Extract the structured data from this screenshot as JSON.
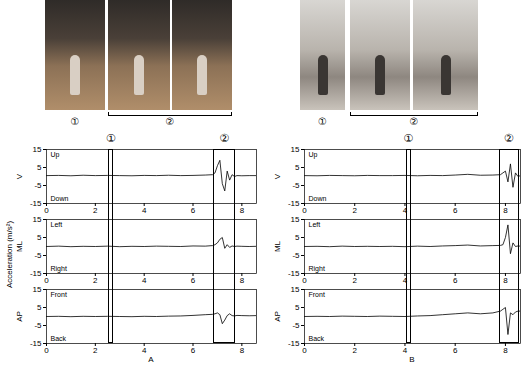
{
  "figure": {
    "ylabel": "Acceleration (m/s²)"
  },
  "photo_panels": [
    {
      "frame_groups": [
        {
          "label": "①",
          "frames": 1
        },
        {
          "label": "②",
          "frames": 2
        }
      ]
    },
    {
      "frame_groups": [
        {
          "label": "①",
          "frames": 1
        },
        {
          "label": "②",
          "frames": 2
        }
      ]
    }
  ],
  "panels": [
    {
      "label": "A",
      "windows": [
        {
          "label": "①",
          "x": [
            2.55,
            2.75
          ]
        },
        {
          "label": "②",
          "x": [
            6.85,
            7.75
          ]
        }
      ]
    },
    {
      "label": "B",
      "windows": [
        {
          "label": "①",
          "x": [
            4.05,
            4.25
          ]
        },
        {
          "label": "②",
          "x": [
            7.75,
            8.55
          ]
        }
      ]
    }
  ],
  "chart_data": [
    {
      "type": "line",
      "panel": "A",
      "ylabel": "V",
      "annotations": [
        "Up",
        "Down"
      ],
      "color": "#000000",
      "x": [
        0,
        0.5,
        1,
        1.5,
        2,
        2.5,
        3,
        3.5,
        4,
        4.5,
        5,
        5.5,
        6,
        6.5,
        6.8,
        6.9,
        7.0,
        7.1,
        7.2,
        7.3,
        7.4,
        7.5,
        7.6,
        7.7,
        7.8,
        8.0,
        8.3,
        8.6
      ],
      "values": [
        0.5,
        0.6,
        0.4,
        0.7,
        0.5,
        0.6,
        0.5,
        0.4,
        0.6,
        0.5,
        0.7,
        0.5,
        0.6,
        0.8,
        1,
        2,
        6,
        9,
        -4,
        -8,
        3,
        -2,
        1,
        0,
        0.5,
        0.4,
        0.5,
        0.5
      ],
      "xlim": [
        0,
        8.6
      ],
      "ylim": [
        -15,
        15
      ],
      "xticks": [
        0,
        2,
        4,
        6,
        8
      ],
      "yticks": [
        -15,
        -5,
        5,
        15
      ]
    },
    {
      "type": "line",
      "panel": "A",
      "ylabel": "ML",
      "annotations": [
        "Left",
        "Right"
      ],
      "color": "#000000",
      "x": [
        0,
        0.5,
        1,
        1.5,
        2,
        2.5,
        3,
        3.5,
        4,
        4.5,
        5,
        5.5,
        6,
        6.5,
        6.8,
        6.9,
        7.0,
        7.1,
        7.2,
        7.3,
        7.4,
        7.5,
        7.6,
        7.7,
        7.8,
        8.0,
        8.3,
        8.6
      ],
      "values": [
        0,
        0.2,
        -0.1,
        0.1,
        0,
        0.2,
        -0.1,
        0.1,
        0,
        0.2,
        0.1,
        0,
        0.3,
        0.2,
        0.5,
        1,
        2,
        4,
        5,
        -1,
        1,
        -0.5,
        0.3,
        0,
        0.2,
        0.1,
        0,
        0.1
      ],
      "xlim": [
        0,
        8.6
      ],
      "ylim": [
        -15,
        15
      ],
      "xticks": [
        0,
        2,
        4,
        6,
        8
      ],
      "yticks": [
        -15,
        -5,
        5,
        15
      ]
    },
    {
      "type": "line",
      "panel": "A",
      "ylabel": "AP",
      "annotations": [
        "Front",
        "Back"
      ],
      "color": "#000000",
      "x": [
        0,
        0.5,
        1,
        1.5,
        2,
        2.5,
        3,
        3.5,
        4,
        4.5,
        5,
        5.5,
        6,
        6.5,
        6.8,
        6.9,
        7.0,
        7.1,
        7.2,
        7.3,
        7.4,
        7.5,
        7.6,
        7.7,
        7.8,
        8.0,
        8.3,
        8.6
      ],
      "values": [
        0,
        0.1,
        -0.1,
        0.1,
        0,
        0.1,
        0,
        -0.1,
        0.1,
        0,
        0.2,
        0.3,
        0.6,
        1,
        1.2,
        1.5,
        2,
        1,
        -4,
        -2,
        0.5,
        1.5,
        0.5,
        0.3,
        0.6,
        0.5,
        0.4,
        0.5
      ],
      "xlim": [
        0,
        8.6
      ],
      "ylim": [
        -15,
        15
      ],
      "xticks": [
        0,
        2,
        4,
        6,
        8
      ],
      "yticks": [
        -15,
        -5,
        5,
        15
      ]
    },
    {
      "type": "line",
      "panel": "B",
      "ylabel": "V",
      "annotations": [
        "Up",
        "Down"
      ],
      "color": "#000000",
      "x": [
        0,
        0.5,
        1,
        1.5,
        2,
        2.5,
        3,
        3.5,
        4,
        4.5,
        5,
        5.5,
        6,
        6.5,
        7,
        7.5,
        7.8,
        7.9,
        8.0,
        8.1,
        8.2,
        8.3,
        8.4,
        8.5,
        8.6
      ],
      "values": [
        0.5,
        0.4,
        0.6,
        0.5,
        0.4,
        0.6,
        0.5,
        0.5,
        0.6,
        0.4,
        0.6,
        0.5,
        0.8,
        1.2,
        0.7,
        0.8,
        1,
        2,
        3,
        -3,
        7,
        -6,
        2,
        0,
        0.5
      ],
      "xlim": [
        0,
        8.6
      ],
      "ylim": [
        -15,
        15
      ],
      "xticks": [
        0,
        2,
        4,
        6,
        8
      ],
      "yticks": [
        -15,
        -5,
        5,
        15
      ]
    },
    {
      "type": "line",
      "panel": "B",
      "ylabel": "ML",
      "annotations": [
        "Left",
        "Right"
      ],
      "color": "#000000",
      "x": [
        0,
        0.5,
        1,
        1.5,
        2,
        2.5,
        3,
        3.5,
        4,
        4.5,
        5,
        5.5,
        6,
        6.5,
        7,
        7.5,
        7.8,
        7.9,
        8.0,
        8.1,
        8.2,
        8.3,
        8.4,
        8.5,
        8.6
      ],
      "values": [
        0,
        0.1,
        -0.1,
        0.2,
        0,
        0.1,
        0,
        0.1,
        -0.1,
        0.2,
        0,
        0.3,
        0.5,
        0.8,
        0.3,
        0.5,
        0.6,
        1,
        5,
        12,
        -4,
        2,
        0,
        0.3,
        0.2
      ],
      "xlim": [
        0,
        8.6
      ],
      "ylim": [
        -15,
        15
      ],
      "xticks": [
        0,
        2,
        4,
        6,
        8
      ],
      "yticks": [
        -15,
        -5,
        5,
        15
      ]
    },
    {
      "type": "line",
      "panel": "B",
      "ylabel": "AP",
      "annotations": [
        "Front",
        "Back"
      ],
      "color": "#000000",
      "x": [
        0,
        0.5,
        1,
        1.5,
        2,
        2.5,
        3,
        3.5,
        4,
        4.5,
        5,
        5.5,
        6,
        6.5,
        7,
        7.5,
        7.8,
        7.9,
        8.0,
        8.1,
        8.2,
        8.3,
        8.4,
        8.5,
        8.6
      ],
      "values": [
        0,
        0.1,
        0,
        0.2,
        0.1,
        0,
        0.2,
        0.1,
        0,
        0.3,
        0.5,
        1,
        1.5,
        2,
        1.5,
        2,
        3,
        4,
        5,
        -10,
        2,
        1,
        2.5,
        3,
        3
      ],
      "xlim": [
        0,
        8.6
      ],
      "ylim": [
        -15,
        15
      ],
      "xticks": [
        0,
        2,
        4,
        6,
        8
      ],
      "yticks": [
        -15,
        -5,
        5,
        15
      ]
    }
  ]
}
